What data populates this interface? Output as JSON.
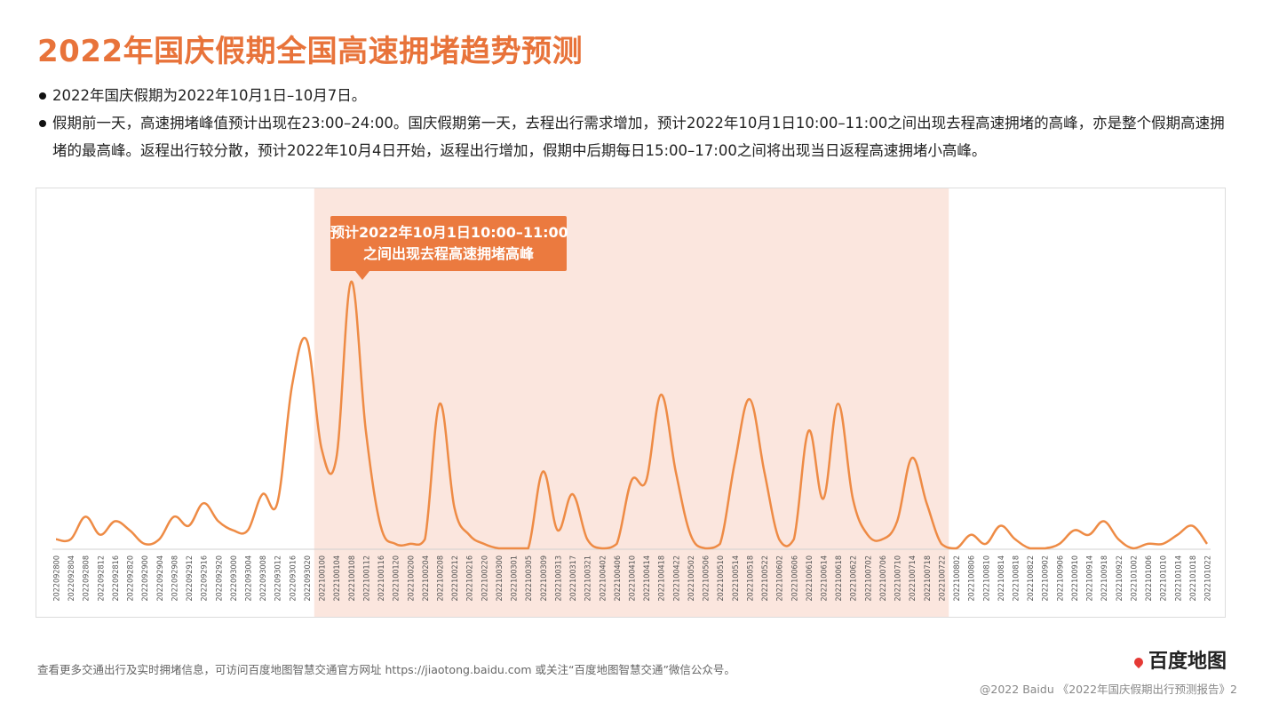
{
  "title": "2022年国庆假期全国高速拥堵趋势预测",
  "bullets": [
    "2022年国庆假期为2022年10月1日–10月7日。",
    "假期前一天，高速拥堵峰值预计出现在23:00–24:00。国庆假期第一天，去程出行需求增加，预计2022年10月1日10:00–11:00之间出现去程高速拥堵的高峰，亦是整个假期高速拥堵的最高峰。返程出行较分散，预计2022年10月4日开始，返程出行增加，假期中后期每日15:00–17:00之间将出现当日返程高速拥堵小高峰。"
  ],
  "callout": {
    "line1": "预计2022年10月1日10:00–11:00",
    "line2": "之间出现去程高速拥堵高峰"
  },
  "footer_note": "查看更多交通出行及实时拥堵信息，可访问百度地图智慧交通官方网址 https://jiaotong.baidu.com 或关注“百度地图智慧交通”微信公众号。",
  "copyright": "@2022 Baidu 《2022年国庆假期出行预测报告》2",
  "logo_text": "百度地图",
  "colors": {
    "accent": "#E8733A",
    "line": "#EE8B45",
    "highlight": "#FBE6DE"
  },
  "chart_data": {
    "type": "line",
    "highlight_range": [
      "2022100100",
      "2022100722"
    ],
    "categories": [
      "2022092800",
      "2022092804",
      "2022092808",
      "2022092812",
      "2022092816",
      "2022092820",
      "2022092900",
      "2022092904",
      "2022092908",
      "2022092912",
      "2022092916",
      "2022092920",
      "2022093000",
      "2022093004",
      "2022093008",
      "2022093012",
      "2022093016",
      "2022093020",
      "2022100100",
      "2022100104",
      "2022100108",
      "2022100112",
      "2022100116",
      "2022100120",
      "2022100200",
      "2022100204",
      "2022100208",
      "2022100212",
      "2022100216",
      "2022100220",
      "2022100300",
      "2022100301",
      "2022100305",
      "2022100309",
      "2022100313",
      "2022100317",
      "2022100321",
      "2022100402",
      "2022100406",
      "2022100410",
      "2022100414",
      "2022100418",
      "2022100422",
      "2022100502",
      "2022100506",
      "2022100510",
      "2022100514",
      "2022100518",
      "2022100522",
      "2022100602",
      "2022100606",
      "2022100610",
      "2022100614",
      "2022100618",
      "2022100622",
      "2022100702",
      "2022100706",
      "2022100710",
      "2022100714",
      "2022100718",
      "2022100722",
      "2022100802",
      "2022100806",
      "2022100810",
      "2022100814",
      "2022100818",
      "2022100822",
      "2022100902",
      "2022100906",
      "2022100910",
      "2022100914",
      "2022100918",
      "2022100922",
      "2022101002",
      "2022101006",
      "2022101010",
      "2022101014",
      "2022101018",
      "2022101022"
    ],
    "values": [
      2,
      2,
      7,
      3,
      6,
      4,
      1,
      2,
      7,
      5,
      10,
      6,
      4,
      4,
      12,
      10,
      36,
      46,
      22,
      20,
      59,
      26,
      5,
      1,
      1,
      2,
      32,
      9,
      3,
      1,
      0,
      0,
      0,
      17,
      4,
      12,
      2,
      0,
      1,
      15,
      15,
      34,
      17,
      3,
      0,
      1,
      19,
      33,
      17,
      2,
      2,
      26,
      11,
      32,
      11,
      3,
      2,
      6,
      20,
      10,
      1,
      0,
      3,
      1,
      5,
      2,
      0,
      0,
      1,
      4,
      3,
      6,
      2,
      0,
      1,
      1,
      3,
      5,
      1
    ]
  }
}
